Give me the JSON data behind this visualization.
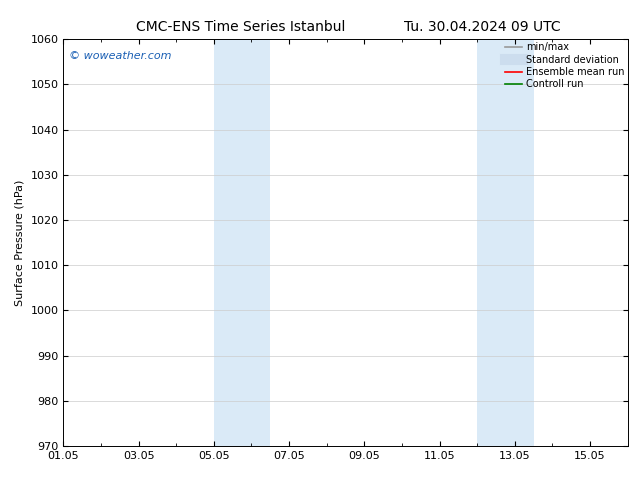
{
  "title": "CMC-ENS Time Series Istanbul",
  "title_right": "Tu. 30.04.2024 09 UTC",
  "ylabel": "Surface Pressure (hPa)",
  "xlim": [
    0,
    15
  ],
  "ylim": [
    970,
    1060
  ],
  "yticks": [
    970,
    980,
    990,
    1000,
    1010,
    1020,
    1030,
    1040,
    1050,
    1060
  ],
  "xtick_labels": [
    "01.05",
    "03.05",
    "05.05",
    "07.05",
    "09.05",
    "11.05",
    "13.05",
    "15.05"
  ],
  "xtick_positions": [
    0,
    2,
    4,
    6,
    8,
    10,
    12,
    14
  ],
  "shaded_regions": [
    {
      "xmin": 4.0,
      "xmax": 5.5,
      "color": "#daeaf7"
    },
    {
      "xmin": 11.0,
      "xmax": 12.5,
      "color": "#daeaf7"
    }
  ],
  "watermark_text": "© woweather.com",
  "watermark_color": "#1a5fb4",
  "legend_items": [
    {
      "label": "min/max",
      "color": "#999999",
      "lw": 1.2,
      "style": "solid"
    },
    {
      "label": "Standard deviation",
      "color": "#ccddee",
      "lw": 5,
      "style": "solid"
    },
    {
      "label": "Ensemble mean run",
      "color": "red",
      "lw": 1.2,
      "style": "solid"
    },
    {
      "label": "Controll run",
      "color": "green",
      "lw": 1.2,
      "style": "solid"
    }
  ],
  "bg_color": "#ffffff",
  "grid_color": "#cccccc",
  "title_fontsize": 10,
  "axis_fontsize": 8,
  "tick_fontsize": 8,
  "watermark_fontsize": 8
}
